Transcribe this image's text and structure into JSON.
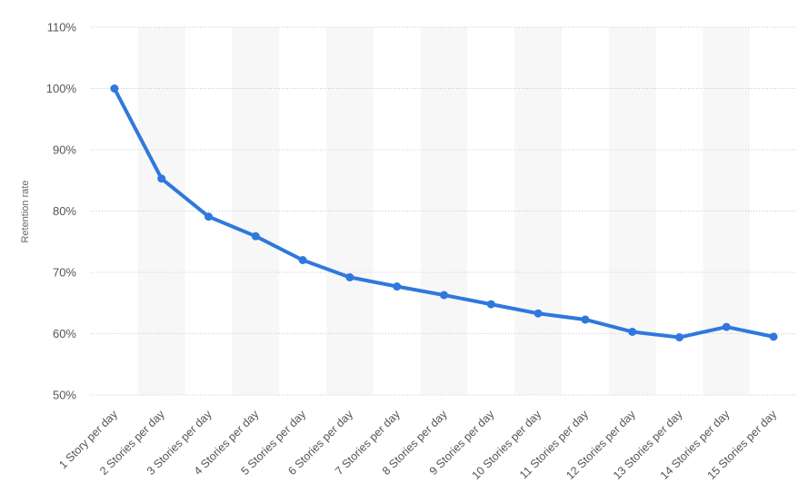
{
  "chart_data": {
    "type": "line",
    "title": "",
    "xlabel": "",
    "ylabel": "Retention rate",
    "categories": [
      "1 Story per day",
      "2 Stories per day",
      "3 Stories per day",
      "4 Stories per day",
      "5 Stories per day",
      "6 Stories per day",
      "7 Stories per day",
      "8 Stories per day",
      "9 Stories per day",
      "10 Stories per day",
      "11 Stories per day",
      "12 Stories per day",
      "13 Stories per day",
      "14 Stories per day",
      "15 Stories per day"
    ],
    "series": [
      {
        "values": [
          100,
          85.3,
          79.1,
          75.9,
          72,
          69.2,
          67.7,
          66.3,
          64.8,
          63.3,
          62.3,
          60.3,
          59.4,
          61.1,
          59.5
        ],
        "color": "#2f78dd"
      }
    ],
    "ylim": [
      50,
      110
    ],
    "yticks": [
      50,
      60,
      70,
      80,
      90,
      100,
      110
    ],
    "ytick_labels": [
      "50%",
      "60%",
      "70%",
      "80%",
      "90%",
      "100%",
      "110%"
    ],
    "grid": true,
    "alternating_bands": true,
    "legend": "none"
  }
}
